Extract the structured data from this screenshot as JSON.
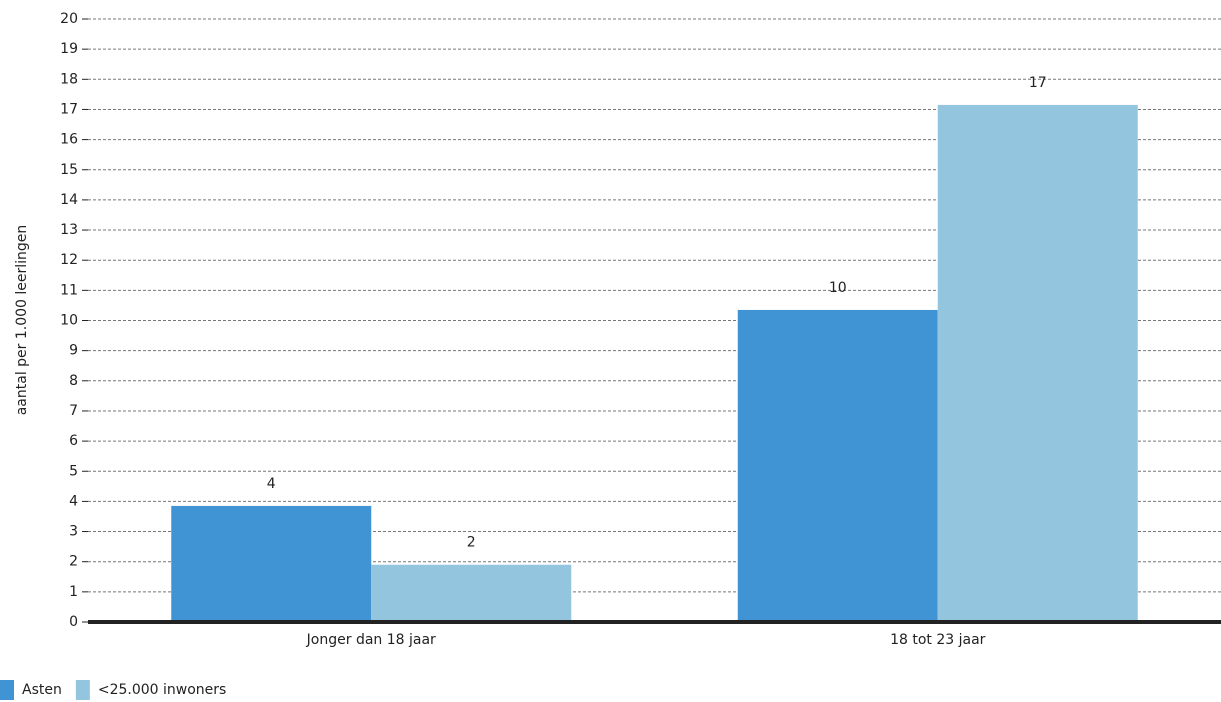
{
  "chart_data": {
    "type": "bar",
    "y_label": "aantal per 1.000 leerlingen",
    "categories": [
      "Jonger dan 18 jaar",
      "18 tot 23 jaar"
    ],
    "series": [
      {
        "name": "Asten",
        "color": "#4194d4",
        "values": [
          3.85,
          10.35
        ],
        "value_labels": [
          "4",
          "10"
        ]
      },
      {
        "name": "<25.000 inwoners",
        "color": "#93c5df",
        "values": [
          1.9,
          17.15
        ],
        "value_labels": [
          "2",
          "17"
        ]
      }
    ],
    "ylim": [
      0,
      20
    ],
    "yticks": [
      0,
      1,
      2,
      3,
      4,
      5,
      6,
      7,
      8,
      9,
      10,
      11,
      12,
      13,
      14,
      15,
      16,
      17,
      18,
      19,
      20
    ],
    "grid": true
  }
}
